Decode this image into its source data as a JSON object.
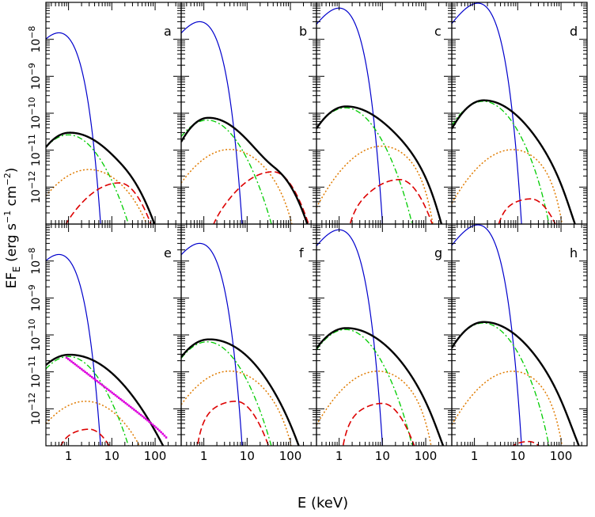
{
  "figure": {
    "xlabel": "E (keV)",
    "ylabel_main": "EF",
    "ylabel_sub": "E",
    "ylabel_rest": " (erg s",
    "ylabel_sup1": "−1",
    "ylabel_mid": " cm",
    "ylabel_sup2": "−2",
    "ylabel_end": ")",
    "y_tick_base": "10",
    "y_tick_exponents": [
      "−8",
      "−9",
      "−10",
      "−11",
      "−12"
    ],
    "x_tick_labels": [
      "1",
      "10",
      "100"
    ]
  },
  "colors": {
    "total": "#000000",
    "blue": "#0000cc",
    "green": "#00cc00",
    "orange": "#e07b00",
    "red": "#dd0000",
    "magenta": "#dd00dd"
  },
  "chart_data": {
    "type": "line",
    "xscale": "log",
    "yscale": "log",
    "xlim": [
      0.3,
      400
    ],
    "ylim": [
      1e-13,
      1e-07
    ],
    "panels": [
      {
        "label": "a",
        "blue": [
          0.6,
          1.5e-08
        ],
        "total": [
          1.0,
          2.8e-11,
          0.44,
          150
        ],
        "green": [
          1.0,
          2.6e-11
        ],
        "orange": [
          3.0,
          3e-12
        ],
        "red": [
          15,
          1.3e-12
        ],
        "red_start": 0.35
      },
      {
        "label": "b",
        "blue": [
          0.8,
          3e-08
        ],
        "total": [
          1.2,
          7e-11,
          0.39,
          160
        ],
        "green": [
          1.2,
          6.5e-11
        ],
        "orange": [
          4.0,
          1.05e-11
        ],
        "red": [
          40,
          2.6e-12
        ],
        "red_start": 0.8
      },
      {
        "label": "c",
        "blue": [
          1.0,
          7e-08
        ],
        "total": [
          1.4,
          1.5e-10,
          0.45,
          150
        ],
        "green": [
          1.4,
          1.4e-10
        ],
        "orange": [
          10,
          1.3e-11
        ],
        "red": [
          25,
          1.6e-12
        ],
        "red_start": 1.2
      },
      {
        "label": "d",
        "blue": [
          1.2,
          9.5e-08
        ],
        "total": [
          1.6,
          2.2e-10,
          0.43,
          110
        ],
        "green": [
          1.6,
          2.1e-10
        ],
        "orange": [
          8,
          1.05e-11
        ],
        "red": [
          20,
          4.8e-13
        ],
        "red_start": 2.5
      },
      {
        "label": "e",
        "blue": [
          0.6,
          1.5e-08
        ],
        "total": [
          1.0,
          2.8e-11,
          0.52,
          150
        ],
        "green": [
          1.0,
          2.6e-11
        ],
        "orange": [
          2.5,
          1.6e-12
        ],
        "red": [
          3.0,
          2.8e-13
        ],
        "red_start": 0.38,
        "data_points": true
      },
      {
        "label": "f",
        "blue": [
          0.8,
          3e-08
        ],
        "total": [
          1.2,
          7e-11,
          0.46,
          150
        ],
        "green": [
          1.2,
          6.5e-11
        ],
        "orange": [
          4.0,
          1.05e-11
        ],
        "red": [
          5.5,
          1.6e-12
        ],
        "red_start": 0.6
      },
      {
        "label": "g",
        "blue": [
          1.0,
          7e-08
        ],
        "total": [
          1.4,
          1.5e-10,
          0.47,
          150
        ],
        "green": [
          1.4,
          1.4e-10
        ],
        "orange": [
          8,
          1.05e-11
        ],
        "red": [
          10,
          1.4e-12
        ],
        "red_start": 1.0
      },
      {
        "label": "h",
        "blue": [
          1.2,
          9.5e-08
        ],
        "total": [
          1.6,
          2.2e-10,
          0.45,
          110
        ],
        "green": [
          1.6,
          2.1e-10
        ],
        "orange": [
          8,
          1.05e-11
        ],
        "red": [
          18,
          1.3e-13
        ],
        "red_start": 3.0
      }
    ]
  }
}
